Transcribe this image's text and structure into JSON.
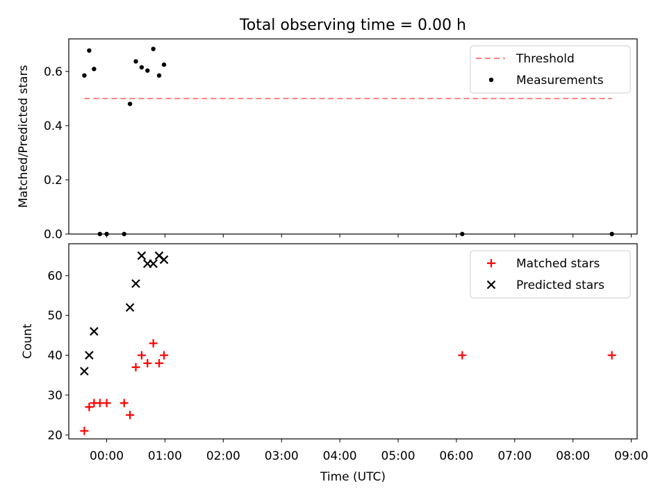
{
  "title": "Total observing time = 0.00 h",
  "chart_data": [
    {
      "type": "scatter",
      "ylabel": "Matched/Predicted stars",
      "xlim": [
        "-00:39",
        "09:06"
      ],
      "ylim": [
        0,
        0.72
      ],
      "yticks": [
        0.0,
        0.2,
        0.4,
        0.6
      ],
      "ytick_labels": [
        "0.0",
        "0.2",
        "0.4",
        "0.6"
      ],
      "grid": false,
      "legend": "top-right",
      "series": [
        {
          "name": "Threshold",
          "kind": "line",
          "style": "dashed",
          "color": "#ff7f7f",
          "x": [
            "-00:23",
            "08:40"
          ],
          "y": [
            0.5,
            0.5
          ]
        },
        {
          "name": "Measurements",
          "kind": "scatter",
          "marker": "dot",
          "color": "#000000",
          "x": [
            "-00:23",
            "-00:18",
            "-00:13",
            "-00:07",
            "00:00",
            "00:18",
            "00:24",
            "00:30",
            "00:36",
            "00:42",
            "00:48",
            "00:54",
            "00:59",
            "06:06",
            "08:40"
          ],
          "y": [
            0.585,
            0.677,
            0.609,
            0.0,
            0.0,
            0.0,
            0.48,
            0.637,
            0.615,
            0.603,
            0.683,
            0.585,
            0.625,
            0.0,
            0.0
          ]
        }
      ]
    },
    {
      "type": "scatter",
      "ylabel": "Count",
      "xlabel": "Time (UTC)",
      "xlim": [
        "-00:39",
        "09:06"
      ],
      "ylim": [
        19,
        68
      ],
      "yticks": [
        20,
        30,
        40,
        50,
        60
      ],
      "ytick_labels": [
        "20",
        "30",
        "40",
        "50",
        "60"
      ],
      "xticks": [
        "00:00",
        "01:00",
        "02:00",
        "03:00",
        "04:00",
        "05:00",
        "06:00",
        "07:00",
        "08:00",
        "09:00"
      ],
      "xtick_labels": [
        "00:00",
        "01:00",
        "02:00",
        "03:00",
        "04:00",
        "05:00",
        "06:00",
        "07:00",
        "08:00",
        "09:00"
      ],
      "grid": false,
      "legend": "top-right",
      "series": [
        {
          "name": "Matched stars",
          "marker": "plus",
          "color": "#ff0000",
          "x": [
            "-00:23",
            "-00:18",
            "-00:13",
            "-00:07",
            "00:00",
            "00:18",
            "00:24",
            "00:30",
            "00:36",
            "00:42",
            "00:48",
            "00:54",
            "00:59",
            "06:06",
            "08:40"
          ],
          "y": [
            21,
            27,
            28,
            28,
            28,
            28,
            25,
            37,
            40,
            38,
            43,
            38,
            40,
            40,
            40
          ]
        },
        {
          "name": "Predicted stars",
          "marker": "x",
          "color": "#000000",
          "x": [
            "-00:23",
            "-00:18",
            "-00:13",
            "00:24",
            "00:30",
            "00:36",
            "00:42",
            "00:48",
            "00:54",
            "00:59"
          ],
          "y": [
            36,
            40,
            46,
            52,
            58,
            65,
            63,
            63,
            65,
            64
          ]
        }
      ]
    }
  ]
}
